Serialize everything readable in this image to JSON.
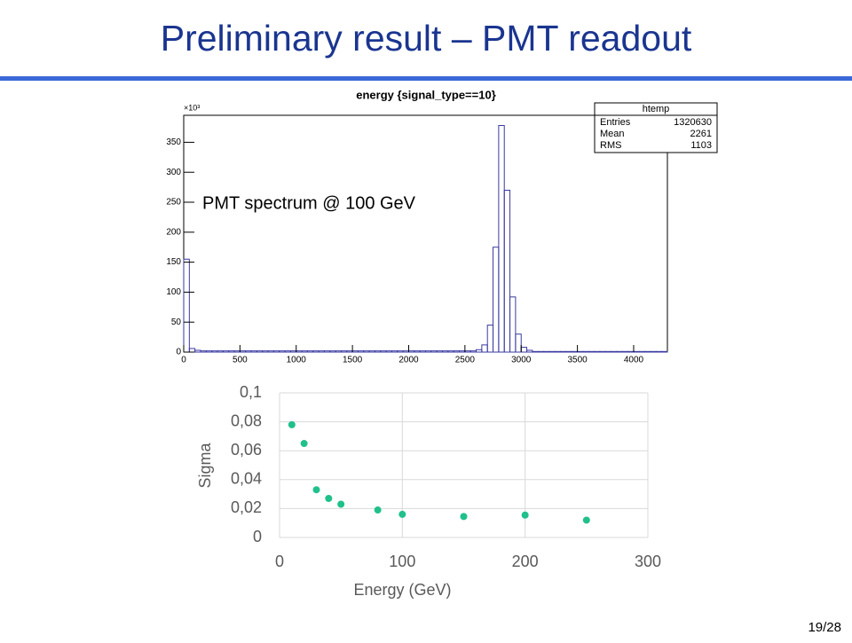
{
  "slide": {
    "title": "Preliminary result – PMT readout",
    "page": "19/28"
  },
  "chart_data": [
    {
      "type": "histogram",
      "title": "energy {signal_type==10}",
      "y_multiplier": "×10³",
      "annotation": "PMT spectrum @ 100 GeV",
      "stats": {
        "name": "htemp",
        "rows": [
          {
            "label": "Entries",
            "value": 1320630
          },
          {
            "label": "Mean",
            "value": 2261
          },
          {
            "label": "RMS",
            "value": 1103
          }
        ]
      },
      "bins": [
        0,
        50,
        100,
        150,
        200,
        250,
        300,
        350,
        400,
        450,
        500,
        550,
        600,
        650,
        700,
        750,
        800,
        850,
        900,
        950,
        1000,
        1050,
        1100,
        1150,
        1200,
        1250,
        1300,
        1350,
        1400,
        1450,
        1500,
        1550,
        1600,
        1650,
        1700,
        1750,
        1800,
        1850,
        1900,
        1950,
        2000,
        2050,
        2100,
        2150,
        2200,
        2250,
        2300,
        2350,
        2400,
        2450,
        2500,
        2550,
        2600,
        2650,
        2700,
        2750,
        2800,
        2850,
        2900,
        2950,
        3000,
        3050,
        3100,
        3150,
        3200,
        3250,
        3300,
        3350,
        3400,
        3450,
        3500,
        3550,
        3600,
        3650,
        3700,
        3750,
        3800,
        3850,
        3900,
        3950,
        4000,
        4050,
        4100,
        4150,
        4200,
        4250,
        4300
      ],
      "counts": [
        155,
        6,
        3,
        2,
        2,
        2,
        2,
        2,
        2,
        2,
        2,
        2,
        2,
        2,
        2,
        2,
        2,
        2,
        2,
        2,
        2,
        2,
        2,
        2,
        2,
        2,
        2,
        2,
        2,
        2,
        2,
        2,
        2,
        2,
        2,
        2,
        2,
        2,
        2,
        2,
        2,
        2,
        2,
        2,
        2,
        2,
        2,
        2,
        2,
        2,
        2,
        2,
        4,
        12,
        45,
        175,
        378,
        270,
        92,
        30,
        8,
        3,
        1,
        1,
        1,
        1,
        1,
        1,
        1,
        1,
        1,
        1,
        1,
        1,
        1,
        1,
        1,
        1,
        1,
        1,
        1,
        1,
        1,
        1,
        1,
        1
      ],
      "color": "#3a3aa0",
      "xlim": [
        0,
        4300
      ],
      "ylim": [
        0,
        395
      ],
      "xticks": [
        0,
        500,
        1000,
        1500,
        2000,
        2500,
        3000,
        3500,
        4000
      ],
      "yticks": [
        0,
        50,
        100,
        150,
        200,
        250,
        300,
        350
      ]
    },
    {
      "type": "scatter",
      "x_label": "Energy (GeV)",
      "y_label": "Sigma",
      "x": [
        10,
        20,
        30,
        40,
        50,
        80,
        100,
        150,
        200,
        250
      ],
      "y": [
        0.078,
        0.065,
        0.033,
        0.027,
        0.023,
        0.019,
        0.016,
        0.0145,
        0.0155,
        0.012
      ],
      "color": "#20c08c",
      "xlim": [
        0,
        300
      ],
      "ylim": [
        0,
        0.1
      ],
      "grid": true,
      "xticks": [
        0,
        100,
        200,
        300
      ],
      "yticks": [
        0,
        {
          "value": 0.02,
          "label": "0,02"
        },
        {
          "value": 0.04,
          "label": "0,04"
        },
        {
          "value": 0.06,
          "label": "0,06"
        },
        {
          "value": 0.08,
          "label": "0,08"
        },
        {
          "value": 0.1,
          "label": "0,1"
        }
      ]
    }
  ]
}
